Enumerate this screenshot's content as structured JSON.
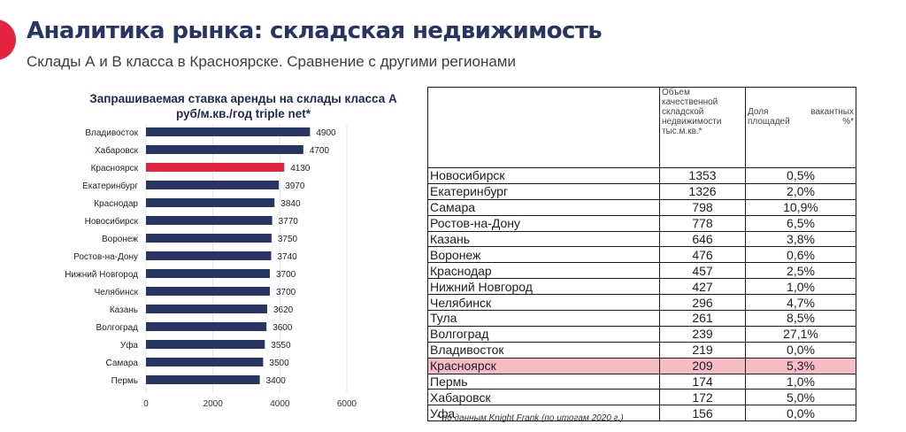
{
  "header": {
    "title": "Аналитика рынка: складская недвижимость",
    "subtitle": "Склады А и В класса в Красноярске. Сравнение с другими регионами"
  },
  "colors": {
    "bar": "#283462",
    "bar_highlight": "#e5243f",
    "accent": "#e5243f",
    "row_highlight": "#f5bcc4"
  },
  "chart_data": {
    "type": "bar",
    "orientation": "horizontal",
    "title": "Запрашиваемая ставка аренды на склады класса А руб/м.кв./год triple net*",
    "categories": [
      "Владивосток",
      "Хабаровск",
      "Красноярск",
      "Екатеринбург",
      "Краснодар",
      "Новосибирск",
      "Воронеж",
      "Ростов-на-Дону",
      "Нижний Новгород",
      "Челябинск",
      "Казань",
      "Волгоград",
      "Уфа",
      "Самара",
      "Пермь"
    ],
    "values": [
      4900,
      4700,
      4130,
      3970,
      3840,
      3770,
      3750,
      3740,
      3700,
      3700,
      3620,
      3600,
      3550,
      3500,
      3400
    ],
    "highlight_category": "Красноярск",
    "xlim": [
      0,
      6000
    ],
    "xticks": [
      0,
      2000,
      4000,
      6000
    ],
    "grid": true,
    "legend": "none"
  },
  "table": {
    "headers": [
      "",
      "Объем качественной складской недвижимости тыс.м.кв.*",
      "Доля вакантных площадей %*"
    ],
    "rows": [
      {
        "city": "Новосибирск",
        "volume": "1353",
        "vacancy": "0,5%"
      },
      {
        "city": "Екатеринбург",
        "volume": "1326",
        "vacancy": "2,0%"
      },
      {
        "city": "Самара",
        "volume": "798",
        "vacancy": "10,9%"
      },
      {
        "city": "Ростов-на-Дону",
        "volume": "778",
        "vacancy": "6,5%"
      },
      {
        "city": "Казань",
        "volume": "646",
        "vacancy": "3,8%"
      },
      {
        "city": "Воронеж",
        "volume": "476",
        "vacancy": "0,6%"
      },
      {
        "city": "Краснодар",
        "volume": "457",
        "vacancy": "2,5%"
      },
      {
        "city": "Нижний Новгород",
        "volume": "427",
        "vacancy": "1,0%"
      },
      {
        "city": "Челябинск",
        "volume": "296",
        "vacancy": "4,7%"
      },
      {
        "city": "Тула",
        "volume": "261",
        "vacancy": "8,5%"
      },
      {
        "city": "Волгоград",
        "volume": "239",
        "vacancy": "27,1%"
      },
      {
        "city": "Владивосток",
        "volume": "219",
        "vacancy": "0,0%"
      },
      {
        "city": "Красноярск",
        "volume": "209",
        "vacancy": "5,3%",
        "highlight": true
      },
      {
        "city": "Пермь",
        "volume": "174",
        "vacancy": "1,0%"
      },
      {
        "city": "Хабаровск",
        "volume": "172",
        "vacancy": "5,0%"
      },
      {
        "city": "Уфа",
        "volume": "156",
        "vacancy": "0,0%"
      }
    ]
  },
  "footnote": "* по данным Knight Frank (по итогам 2020 г.)"
}
